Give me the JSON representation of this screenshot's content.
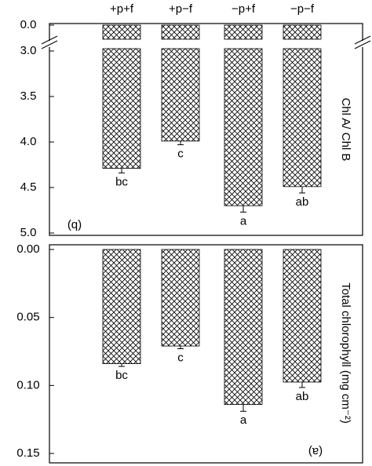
{
  "chart_data": [
    {
      "type": "bar",
      "panel_label": "(a)",
      "ylabel": "Total chlorophyll (mg cm⁻²)",
      "values": [
        0.0975,
        0.114,
        0.071,
        0.084
      ],
      "errors": [
        0.004,
        0.005,
        0.002,
        0.002
      ],
      "letters": [
        "ab",
        "a",
        "c",
        "bc"
      ],
      "ylim": [
        0,
        0.15
      ],
      "yticks": [
        {
          "value": 0,
          "label": "0.00"
        },
        {
          "value": 0.05,
          "label": "0.05"
        },
        {
          "value": 0.1,
          "label": "0.10"
        },
        {
          "value": 0.15,
          "label": "0.15"
        }
      ]
    },
    {
      "type": "bar",
      "panel_label": "(b)",
      "ylabel": "Chl A/ Chl B",
      "categories": [
        "−p−f",
        "−p+f",
        "+p−f",
        "+p+f"
      ],
      "values": [
        4.49,
        4.7,
        3.99,
        4.29
      ],
      "errors": [
        0.07,
        0.07,
        0.04,
        0.05
      ],
      "letters": [
        "ab",
        "a",
        "c",
        "bc"
      ],
      "ylim": [
        3,
        5
      ],
      "axis_break": [
        0,
        3
      ],
      "yticks": [
        {
          "value": 0,
          "label": "0.0"
        },
        {
          "value": 3,
          "label": "3.0"
        },
        {
          "value": 3.5,
          "label": "3.5"
        },
        {
          "value": 4,
          "label": "4.0"
        },
        {
          "value": 4.5,
          "label": "4.5"
        },
        {
          "value": 5,
          "label": "5.0"
        }
      ]
    }
  ]
}
